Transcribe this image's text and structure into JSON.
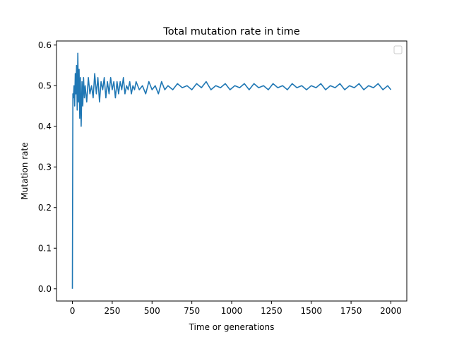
{
  "chart_data": {
    "type": "line",
    "title": "Total mutation rate in time",
    "xlabel": "Time or generations",
    "ylabel": "Mutation rate",
    "xlim": [
      -100,
      2100
    ],
    "ylim": [
      -0.03,
      0.61
    ],
    "xticks": [
      0,
      250,
      500,
      750,
      1000,
      1250,
      1500,
      1750,
      2000
    ],
    "yticks": [
      0.0,
      0.1,
      0.2,
      0.3,
      0.4,
      0.5,
      0.6
    ],
    "xtick_labels": [
      "0",
      "250",
      "500",
      "750",
      "1000",
      "1250",
      "1500",
      "1750",
      "2000"
    ],
    "ytick_labels": [
      "0.0",
      "0.1",
      "0.2",
      "0.3",
      "0.4",
      "0.5",
      "0.6"
    ],
    "grid": false,
    "legend": {
      "placement": "top-right",
      "entries": []
    },
    "series": [
      {
        "color": "#1f77b4",
        "x": [
          0,
          3,
          6,
          10,
          14,
          18,
          22,
          26,
          30,
          34,
          38,
          42,
          46,
          50,
          55,
          60,
          65,
          70,
          75,
          80,
          90,
          100,
          110,
          120,
          130,
          140,
          150,
          160,
          170,
          180,
          190,
          200,
          210,
          220,
          230,
          240,
          250,
          260,
          270,
          280,
          290,
          300,
          310,
          320,
          330,
          340,
          350,
          360,
          370,
          380,
          390,
          400,
          420,
          440,
          460,
          480,
          500,
          520,
          540,
          560,
          580,
          600,
          630,
          660,
          690,
          720,
          750,
          780,
          810,
          840,
          870,
          900,
          930,
          960,
          990,
          1020,
          1050,
          1080,
          1110,
          1140,
          1170,
          1200,
          1230,
          1260,
          1290,
          1320,
          1350,
          1380,
          1410,
          1440,
          1470,
          1500,
          1530,
          1560,
          1590,
          1620,
          1650,
          1680,
          1710,
          1740,
          1770,
          1800,
          1830,
          1860,
          1890,
          1920,
          1950,
          1980,
          2000
        ],
        "y": [
          0.0,
          0.48,
          0.47,
          0.5,
          0.45,
          0.53,
          0.48,
          0.55,
          0.44,
          0.58,
          0.46,
          0.54,
          0.42,
          0.52,
          0.4,
          0.51,
          0.45,
          0.52,
          0.47,
          0.5,
          0.46,
          0.52,
          0.48,
          0.5,
          0.47,
          0.53,
          0.48,
          0.52,
          0.46,
          0.51,
          0.49,
          0.52,
          0.47,
          0.51,
          0.48,
          0.52,
          0.49,
          0.51,
          0.47,
          0.51,
          0.48,
          0.51,
          0.49,
          0.52,
          0.48,
          0.5,
          0.49,
          0.51,
          0.48,
          0.5,
          0.49,
          0.51,
          0.49,
          0.5,
          0.48,
          0.51,
          0.49,
          0.5,
          0.48,
          0.51,
          0.49,
          0.5,
          0.49,
          0.505,
          0.495,
          0.5,
          0.49,
          0.505,
          0.495,
          0.51,
          0.49,
          0.5,
          0.495,
          0.505,
          0.49,
          0.5,
          0.495,
          0.505,
          0.49,
          0.505,
          0.495,
          0.5,
          0.49,
          0.505,
          0.495,
          0.5,
          0.49,
          0.505,
          0.495,
          0.5,
          0.49,
          0.5,
          0.495,
          0.505,
          0.49,
          0.5,
          0.495,
          0.505,
          0.49,
          0.5,
          0.495,
          0.505,
          0.49,
          0.5,
          0.495,
          0.505,
          0.49,
          0.5,
          0.49
        ]
      }
    ]
  }
}
